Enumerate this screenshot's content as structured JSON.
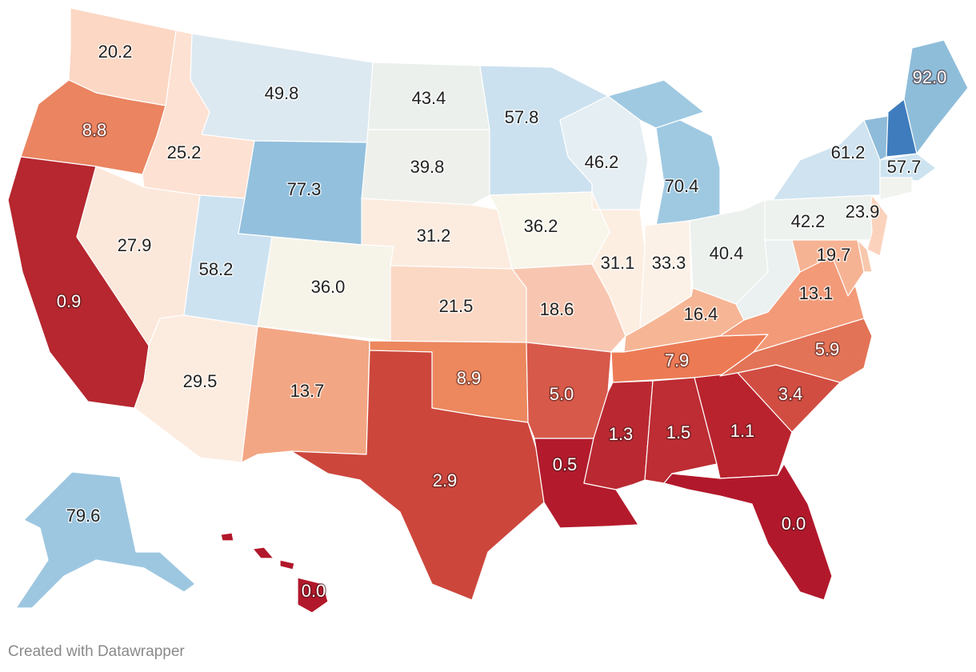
{
  "credit": "Created with Datawrapper",
  "color_scale": {
    "low": "#b2182b",
    "mid": "#f7f7f7",
    "high": "#2166ac"
  },
  "states": [
    {
      "id": "WA",
      "value": "20.2",
      "color": "#fbd7c4"
    },
    {
      "id": "OR",
      "value": "8.8",
      "color": "#ea8461"
    },
    {
      "id": "CA",
      "value": "0.9",
      "color": "#b6272f"
    },
    {
      "id": "ID",
      "value": "25.2",
      "color": "#fde1d2"
    },
    {
      "id": "NV",
      "value": "27.9",
      "color": "#fce8db"
    },
    {
      "id": "MT",
      "value": "49.8",
      "color": "#dde9f1"
    },
    {
      "id": "WY",
      "value": "77.3",
      "color": "#93c0dd"
    },
    {
      "id": "UT",
      "value": "58.2",
      "color": "#cde2f0"
    },
    {
      "id": "AZ",
      "value": "29.5",
      "color": "#fcebdf"
    },
    {
      "id": "CO",
      "value": "36.0",
      "color": "#f6f4e9"
    },
    {
      "id": "NM",
      "value": "13.7",
      "color": "#f3a684"
    },
    {
      "id": "ND",
      "value": "43.4",
      "color": "#ebf0ec"
    },
    {
      "id": "SD",
      "value": "39.8",
      "color": "#eef0eb"
    },
    {
      "id": "NE",
      "value": "31.2",
      "color": "#fcecdf"
    },
    {
      "id": "KS",
      "value": "21.5",
      "color": "#fbd8c4"
    },
    {
      "id": "OK",
      "value": "8.9",
      "color": "#ec875e"
    },
    {
      "id": "TX",
      "value": "2.9",
      "color": "#cc463c"
    },
    {
      "id": "MN",
      "value": "57.8",
      "color": "#cce1ef"
    },
    {
      "id": "IA",
      "value": "36.2",
      "color": "#f8f5ea"
    },
    {
      "id": "MO",
      "value": "18.6",
      "color": "#f8c6b0"
    },
    {
      "id": "AR",
      "value": "5.0",
      "color": "#d7594a"
    },
    {
      "id": "LA",
      "value": "0.5",
      "color": "#b31b2c"
    },
    {
      "id": "WI",
      "value": "46.2",
      "color": "#e5eef2"
    },
    {
      "id": "IL",
      "value": "31.1",
      "color": "#fdeee2"
    },
    {
      "id": "MI",
      "value": "70.4",
      "color": "#9fc9e1"
    },
    {
      "id": "IN",
      "value": "33.3",
      "color": "#fcf1e6"
    },
    {
      "id": "OH",
      "value": "40.4",
      "color": "#ecf1ee"
    },
    {
      "id": "KY",
      "value": "16.4",
      "color": "#f6b695"
    },
    {
      "id": "TN",
      "value": "7.9",
      "color": "#ec7b55"
    },
    {
      "id": "MS",
      "value": "1.3",
      "color": "#ba2932"
    },
    {
      "id": "AL",
      "value": "1.5",
      "color": "#bd2d33"
    },
    {
      "id": "GA",
      "value": "1.1",
      "color": "#b9232e"
    },
    {
      "id": "FL",
      "value": "0.0",
      "color": "#b2182b"
    },
    {
      "id": "SC",
      "value": "3.4",
      "color": "#d14d42"
    },
    {
      "id": "NC",
      "value": "5.9",
      "color": "#e37357"
    },
    {
      "id": "VA",
      "value": "13.1",
      "color": "#f39a78"
    },
    {
      "id": "WV",
      "value": "",
      "color": "#ebf1f0"
    },
    {
      "id": "PA",
      "value": "42.2",
      "color": "#eef2ee"
    },
    {
      "id": "NY",
      "value": "61.2",
      "color": "#cfe3f0"
    },
    {
      "id": "VT",
      "value": "",
      "color": "#8ebbd9"
    },
    {
      "id": "NH",
      "value": "",
      "color": "#3e7cbd"
    },
    {
      "id": "ME",
      "value": "92.0",
      "color": "#8ebdda"
    },
    {
      "id": "MA",
      "value": "57.7",
      "color": "#cde3f0"
    },
    {
      "id": "CT",
      "value": "",
      "color": "#f1f3ef"
    },
    {
      "id": "NJ",
      "value": "23.9",
      "color": "#fbd3bd"
    },
    {
      "id": "MD",
      "value": "19.7",
      "color": "#f6b393"
    },
    {
      "id": "DE",
      "value": "",
      "color": "#f8c8ad"
    },
    {
      "id": "AK",
      "value": "79.6",
      "color": "#9dc7e0"
    },
    {
      "id": "HI",
      "value": "0.0",
      "color": "#b2182b"
    }
  ]
}
